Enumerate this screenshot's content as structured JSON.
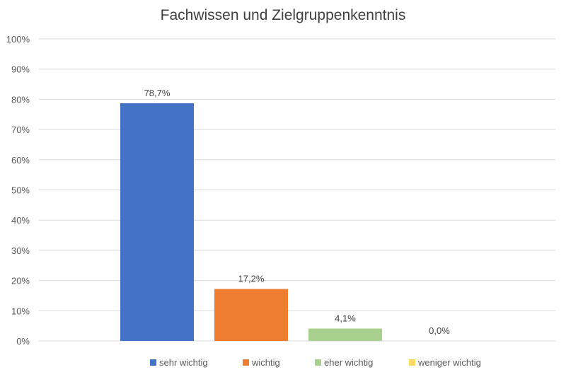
{
  "chart_data": {
    "type": "bar",
    "title": "Fachwissen und Zielgruppenkenntnis",
    "categories": [
      "sehr wichtig",
      "wichtig",
      "eher wichtig",
      "weniger wichtig"
    ],
    "values": [
      78.7,
      17.2,
      4.1,
      0.0
    ],
    "value_labels": [
      "78,7%",
      "17,2%",
      "4,1%",
      "0,0%"
    ],
    "colors": [
      "#4472C4",
      "#ED7D31",
      "#A9D18E",
      "#FFD966"
    ],
    "ylim": [
      0,
      100
    ],
    "y_ticks": [
      0,
      10,
      20,
      30,
      40,
      50,
      60,
      70,
      80,
      90,
      100
    ],
    "y_tick_labels": [
      "0%",
      "10%",
      "20%",
      "30%",
      "40%",
      "50%",
      "60%",
      "70%",
      "80%",
      "90%",
      "100%"
    ],
    "grid": true,
    "legend_position": "bottom"
  }
}
